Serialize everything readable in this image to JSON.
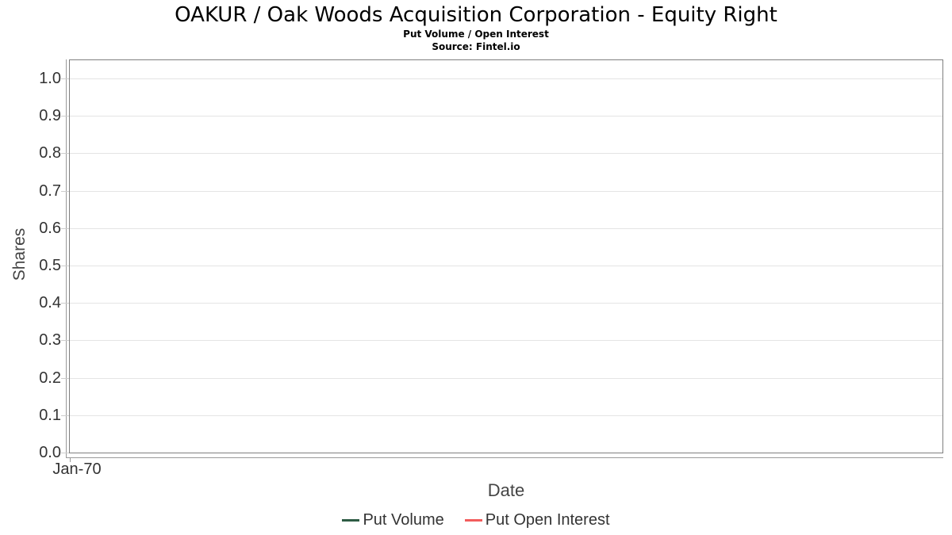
{
  "chart_data": {
    "type": "line",
    "title": "OAKUR / Oak Woods Acquisition Corporation - Equity Right",
    "subtitle": "Put Volume / Open Interest",
    "source": "Source: Fintel.io",
    "xlabel": "Date",
    "ylabel": "Shares",
    "x_ticks": [
      "Jan-70"
    ],
    "y_ticks": [
      "1.0",
      "0.9",
      "0.8",
      "0.7",
      "0.6",
      "0.5",
      "0.4",
      "0.3",
      "0.2",
      "0.1",
      "0.0"
    ],
    "ylim": [
      0.0,
      1.0
    ],
    "grid": "horizontal",
    "legend_position": "bottom",
    "series": [
      {
        "name": "Put Volume",
        "color": "#2e5c44",
        "x": [],
        "values": []
      },
      {
        "name": "Put Open Interest",
        "color": "#f25c5c",
        "x": [],
        "values": []
      }
    ]
  },
  "colors": {
    "put_volume": "#2e5c44",
    "put_open_interest": "#f25c5c",
    "gridline": "#e4e4e4",
    "plot_border": "#7f7f7f"
  }
}
